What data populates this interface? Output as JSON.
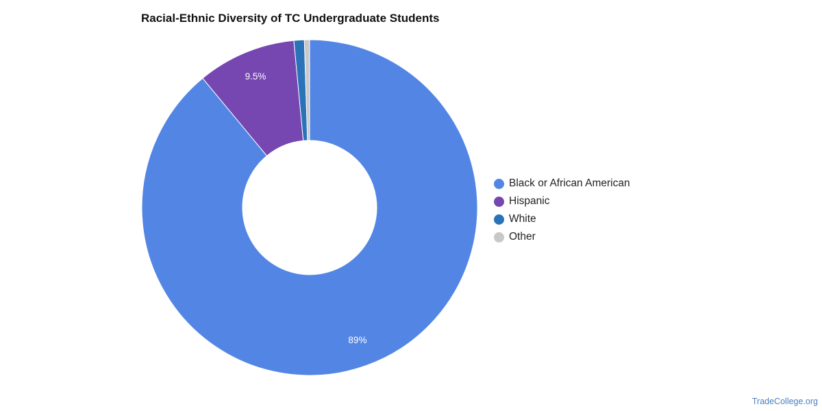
{
  "chart_data": {
    "type": "pie",
    "title": "Racial-Ethnic Diversity of TC Undergraduate Students",
    "categories": [
      "Black or African American",
      "Hispanic",
      "White",
      "Other"
    ],
    "values": [
      89,
      9.5,
      1.0,
      0.5
    ],
    "colors": [
      "#5386e4",
      "#7647b0",
      "#2a73b8",
      "#c8c8c8"
    ],
    "data_labels": [
      "89%",
      "9.5%",
      "",
      ""
    ],
    "legend_position": "right",
    "donut": true
  },
  "footer": {
    "source": "TradeCollege.org"
  }
}
